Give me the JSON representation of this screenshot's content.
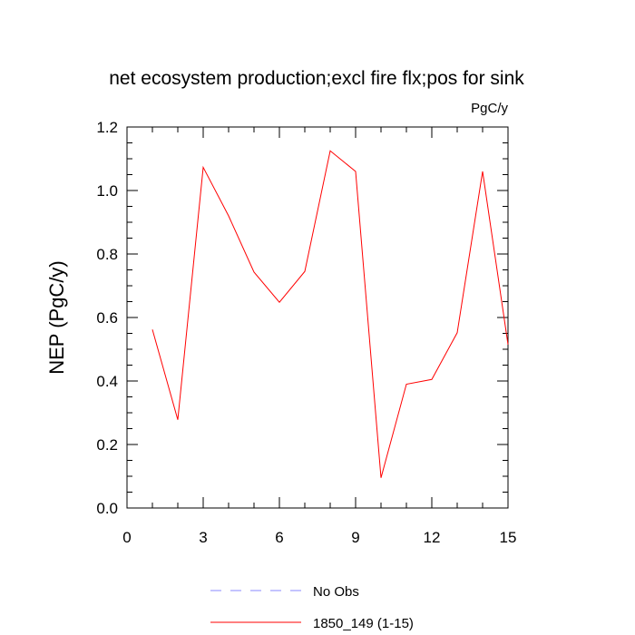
{
  "chart_data": {
    "type": "line",
    "title": "net ecosystem production;excl fire flx;pos for sink",
    "units": "PgC/y",
    "ylabel": "NEP  (PgC/y)",
    "xlabel": "",
    "xlim": [
      0,
      15
    ],
    "ylim": [
      0,
      1.2
    ],
    "xticks": [
      0,
      3,
      6,
      9,
      12,
      15
    ],
    "yticks": [
      0.0,
      0.2,
      0.4,
      0.6,
      0.8,
      1.0,
      1.2
    ],
    "ytick_labels": [
      "0.0",
      "0.2",
      "0.4",
      "0.6",
      "0.8",
      "1.0",
      "1.2"
    ],
    "grid": false,
    "legend_position": "bottom-center",
    "series": [
      {
        "name": "1850_149 (1-15)",
        "color": "#ff0000",
        "style": "solid",
        "x": [
          1,
          2,
          3,
          4,
          5,
          6,
          7,
          8,
          9,
          10,
          11,
          12,
          13,
          14,
          15
        ],
        "y": [
          0.562,
          0.278,
          1.073,
          0.92,
          0.743,
          0.648,
          0.745,
          1.125,
          1.06,
          0.095,
          0.39,
          0.405,
          0.552,
          1.06,
          0.515
        ]
      }
    ],
    "legend": [
      {
        "label": "No Obs",
        "color": "#8a8aff",
        "style": "dashed"
      },
      {
        "label": "1850_149 (1-15)",
        "color": "#ff0000",
        "style": "solid"
      }
    ]
  }
}
